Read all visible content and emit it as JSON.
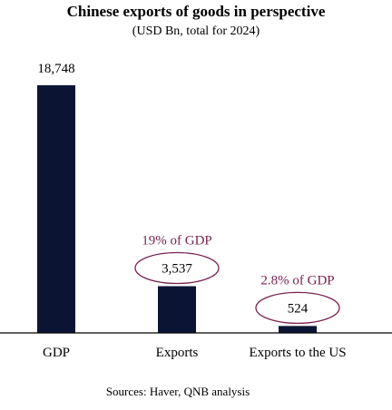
{
  "chart_data": {
    "type": "bar",
    "title": "Chinese exports of goods in perspective",
    "subtitle": "(USD Bn, total for 2024)",
    "categories": [
      "GDP",
      "Exports",
      "Exports to the US"
    ],
    "values": [
      18748,
      3537,
      524
    ],
    "value_labels": [
      "18,748",
      "3,537",
      "524"
    ],
    "annotations": [
      {
        "category": "Exports",
        "text": "19% of GDP"
      },
      {
        "category": "Exports to the US",
        "text": "2.8% of GDP"
      }
    ],
    "source": "Sources: Haver, QNB analysis",
    "grid": false,
    "legend": "none",
    "colors": {
      "bar": "#0b1533",
      "annotation": "#7a1f4f",
      "text": "#000000",
      "axis": "#000000"
    }
  }
}
